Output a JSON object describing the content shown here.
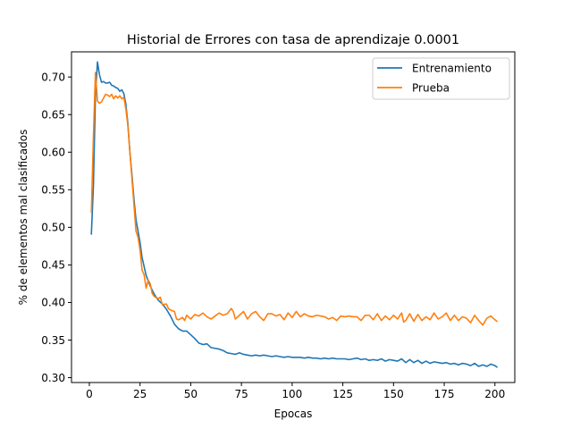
{
  "chart_data": {
    "type": "line",
    "title": "Historial de Errores con tasa de aprendizaje 0.0001",
    "xlabel": "Epocas",
    "ylabel": "% de elementos mal clasificados",
    "xlim": [
      -8.8,
      209.8
    ],
    "ylim": [
      0.2935,
      0.7335
    ],
    "x_ticks": [
      0,
      25,
      50,
      75,
      100,
      125,
      150,
      175,
      200
    ],
    "y_ticks": [
      0.3,
      0.35,
      0.4,
      0.45,
      0.5,
      0.55,
      0.6,
      0.65,
      0.7
    ],
    "y_tick_labels": [
      "0.30",
      "0.35",
      "0.40",
      "0.45",
      "0.50",
      "0.55",
      "0.60",
      "0.65",
      "0.70"
    ],
    "grid": false,
    "legend_position": "top-right",
    "series": [
      {
        "name": "Entrenamiento",
        "color": "#1f77b4",
        "points": [
          [
            1,
            0.491
          ],
          [
            2,
            0.555
          ],
          [
            3,
            0.675
          ],
          [
            4,
            0.72
          ],
          [
            5,
            0.703
          ],
          [
            6,
            0.693
          ],
          [
            7,
            0.694
          ],
          [
            8,
            0.692
          ],
          [
            9,
            0.692
          ],
          [
            10,
            0.693
          ],
          [
            11,
            0.689
          ],
          [
            12,
            0.688
          ],
          [
            13,
            0.686
          ],
          [
            14,
            0.685
          ],
          [
            15,
            0.681
          ],
          [
            16,
            0.683
          ],
          [
            17,
            0.678
          ],
          [
            18,
            0.664
          ],
          [
            19,
            0.638
          ],
          [
            20,
            0.6
          ],
          [
            21,
            0.57
          ],
          [
            22,
            0.538
          ],
          [
            23,
            0.51
          ],
          [
            24,
            0.495
          ],
          [
            25,
            0.48
          ],
          [
            26,
            0.46
          ],
          [
            27,
            0.448
          ],
          [
            28,
            0.436
          ],
          [
            29,
            0.429
          ],
          [
            30,
            0.422
          ],
          [
            32,
            0.411
          ],
          [
            34,
            0.403
          ],
          [
            36,
            0.398
          ],
          [
            38,
            0.391
          ],
          [
            40,
            0.382
          ],
          [
            42,
            0.371
          ],
          [
            44,
            0.365
          ],
          [
            46,
            0.362
          ],
          [
            48,
            0.362
          ],
          [
            50,
            0.357
          ],
          [
            52,
            0.352
          ],
          [
            54,
            0.346
          ],
          [
            56,
            0.344
          ],
          [
            58,
            0.345
          ],
          [
            60,
            0.34
          ],
          [
            62,
            0.339
          ],
          [
            64,
            0.338
          ],
          [
            66,
            0.336
          ],
          [
            68,
            0.333
          ],
          [
            70,
            0.332
          ],
          [
            72,
            0.331
          ],
          [
            74,
            0.333
          ],
          [
            76,
            0.331
          ],
          [
            78,
            0.33
          ],
          [
            80,
            0.329
          ],
          [
            82,
            0.33
          ],
          [
            84,
            0.329
          ],
          [
            86,
            0.33
          ],
          [
            88,
            0.329
          ],
          [
            90,
            0.328
          ],
          [
            92,
            0.329
          ],
          [
            94,
            0.328
          ],
          [
            96,
            0.327
          ],
          [
            98,
            0.328
          ],
          [
            100,
            0.327
          ],
          [
            102,
            0.327
          ],
          [
            104,
            0.327
          ],
          [
            106,
            0.326
          ],
          [
            108,
            0.327
          ],
          [
            110,
            0.326
          ],
          [
            112,
            0.326
          ],
          [
            114,
            0.325
          ],
          [
            116,
            0.326
          ],
          [
            118,
            0.325
          ],
          [
            120,
            0.326
          ],
          [
            122,
            0.325
          ],
          [
            124,
            0.325
          ],
          [
            126,
            0.325
          ],
          [
            128,
            0.324
          ],
          [
            130,
            0.325
          ],
          [
            132,
            0.326
          ],
          [
            134,
            0.324
          ],
          [
            136,
            0.325
          ],
          [
            138,
            0.323
          ],
          [
            140,
            0.324
          ],
          [
            142,
            0.323
          ],
          [
            144,
            0.325
          ],
          [
            146,
            0.322
          ],
          [
            148,
            0.324
          ],
          [
            150,
            0.323
          ],
          [
            152,
            0.322
          ],
          [
            154,
            0.325
          ],
          [
            156,
            0.32
          ],
          [
            158,
            0.324
          ],
          [
            160,
            0.32
          ],
          [
            162,
            0.323
          ],
          [
            164,
            0.319
          ],
          [
            166,
            0.322
          ],
          [
            168,
            0.319
          ],
          [
            170,
            0.321
          ],
          [
            172,
            0.32
          ],
          [
            174,
            0.319
          ],
          [
            176,
            0.32
          ],
          [
            178,
            0.318
          ],
          [
            180,
            0.319
          ],
          [
            182,
            0.317
          ],
          [
            184,
            0.319
          ],
          [
            186,
            0.318
          ],
          [
            188,
            0.316
          ],
          [
            190,
            0.319
          ],
          [
            192,
            0.315
          ],
          [
            194,
            0.317
          ],
          [
            196,
            0.315
          ],
          [
            198,
            0.318
          ],
          [
            200,
            0.316
          ],
          [
            201,
            0.314
          ]
        ]
      },
      {
        "name": "Prueba",
        "color": "#ff7f0e",
        "points": [
          [
            1,
            0.52
          ],
          [
            2,
            0.62
          ],
          [
            3,
            0.706
          ],
          [
            4,
            0.668
          ],
          [
            5,
            0.665
          ],
          [
            6,
            0.667
          ],
          [
            7,
            0.672
          ],
          [
            8,
            0.677
          ],
          [
            9,
            0.676
          ],
          [
            10,
            0.674
          ],
          [
            11,
            0.677
          ],
          [
            12,
            0.671
          ],
          [
            13,
            0.675
          ],
          [
            14,
            0.672
          ],
          [
            15,
            0.675
          ],
          [
            16,
            0.671
          ],
          [
            17,
            0.673
          ],
          [
            18,
            0.658
          ],
          [
            19,
            0.635
          ],
          [
            20,
            0.6
          ],
          [
            21,
            0.565
          ],
          [
            22,
            0.53
          ],
          [
            23,
            0.495
          ],
          [
            24,
            0.487
          ],
          [
            25,
            0.47
          ],
          [
            26,
            0.443
          ],
          [
            27,
            0.437
          ],
          [
            28,
            0.419
          ],
          [
            29,
            0.43
          ],
          [
            30,
            0.425
          ],
          [
            31,
            0.412
          ],
          [
            32,
            0.408
          ],
          [
            34,
            0.405
          ],
          [
            35,
            0.407
          ],
          [
            36,
            0.397
          ],
          [
            38,
            0.398
          ],
          [
            39,
            0.392
          ],
          [
            40,
            0.39
          ],
          [
            42,
            0.388
          ],
          [
            43,
            0.378
          ],
          [
            44,
            0.377
          ],
          [
            46,
            0.38
          ],
          [
            47,
            0.376
          ],
          [
            48,
            0.383
          ],
          [
            50,
            0.378
          ],
          [
            52,
            0.384
          ],
          [
            54,
            0.382
          ],
          [
            56,
            0.386
          ],
          [
            58,
            0.381
          ],
          [
            60,
            0.378
          ],
          [
            62,
            0.382
          ],
          [
            64,
            0.386
          ],
          [
            66,
            0.383
          ],
          [
            68,
            0.385
          ],
          [
            70,
            0.392
          ],
          [
            71,
            0.388
          ],
          [
            72,
            0.378
          ],
          [
            74,
            0.383
          ],
          [
            76,
            0.388
          ],
          [
            78,
            0.378
          ],
          [
            80,
            0.385
          ],
          [
            82,
            0.388
          ],
          [
            84,
            0.381
          ],
          [
            86,
            0.376
          ],
          [
            88,
            0.385
          ],
          [
            90,
            0.385
          ],
          [
            92,
            0.382
          ],
          [
            94,
            0.384
          ],
          [
            96,
            0.377
          ],
          [
            98,
            0.386
          ],
          [
            100,
            0.38
          ],
          [
            102,
            0.388
          ],
          [
            104,
            0.381
          ],
          [
            106,
            0.385
          ],
          [
            108,
            0.382
          ],
          [
            110,
            0.381
          ],
          [
            112,
            0.383
          ],
          [
            114,
            0.382
          ],
          [
            116,
            0.381
          ],
          [
            118,
            0.378
          ],
          [
            120,
            0.38
          ],
          [
            122,
            0.376
          ],
          [
            124,
            0.382
          ],
          [
            126,
            0.381
          ],
          [
            128,
            0.382
          ],
          [
            130,
            0.381
          ],
          [
            132,
            0.381
          ],
          [
            134,
            0.376
          ],
          [
            136,
            0.383
          ],
          [
            138,
            0.383
          ],
          [
            140,
            0.377
          ],
          [
            142,
            0.385
          ],
          [
            144,
            0.376
          ],
          [
            146,
            0.382
          ],
          [
            148,
            0.377
          ],
          [
            150,
            0.383
          ],
          [
            152,
            0.378
          ],
          [
            154,
            0.386
          ],
          [
            155,
            0.374
          ],
          [
            156,
            0.376
          ],
          [
            158,
            0.385
          ],
          [
            160,
            0.375
          ],
          [
            162,
            0.384
          ],
          [
            164,
            0.376
          ],
          [
            166,
            0.381
          ],
          [
            168,
            0.377
          ],
          [
            170,
            0.386
          ],
          [
            172,
            0.378
          ],
          [
            174,
            0.381
          ],
          [
            176,
            0.386
          ],
          [
            178,
            0.376
          ],
          [
            180,
            0.383
          ],
          [
            182,
            0.376
          ],
          [
            184,
            0.381
          ],
          [
            186,
            0.379
          ],
          [
            188,
            0.373
          ],
          [
            190,
            0.383
          ],
          [
            192,
            0.376
          ],
          [
            194,
            0.37
          ],
          [
            196,
            0.379
          ],
          [
            198,
            0.382
          ],
          [
            200,
            0.377
          ],
          [
            201,
            0.375
          ]
        ]
      }
    ]
  }
}
